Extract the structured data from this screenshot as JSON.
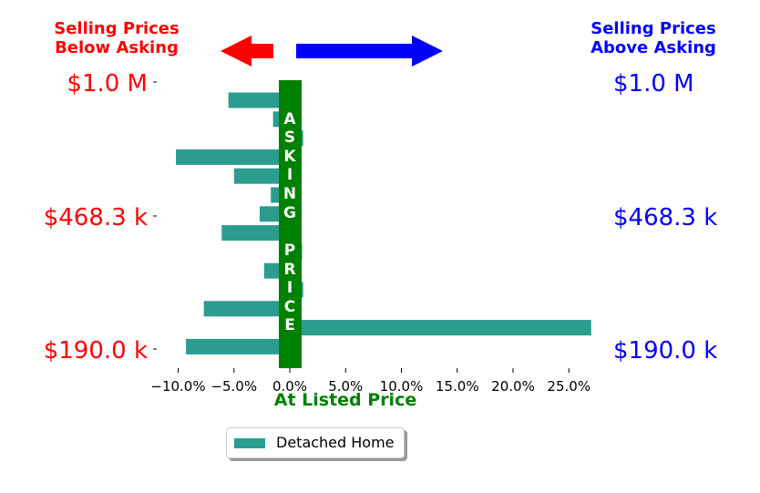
{
  "header": {
    "left_label": "Selling Prices\nBelow Asking",
    "right_label": "Selling Prices\nAbove Asking",
    "left_color": "#ff0000",
    "right_color": "#0000ff"
  },
  "colors": {
    "bar": "#2a9d8f",
    "center_bar": "#008000",
    "center_text": "#ffffff",
    "left_tick": "#ff0000",
    "right_tick": "#0000ff"
  },
  "chart_data": {
    "type": "bar",
    "orientation": "horizontal",
    "xlabel": "At Listed Price",
    "xlim": [
      -12.5,
      27.5
    ],
    "xticks": [
      -10,
      -5,
      0,
      5,
      10,
      15,
      20,
      25
    ],
    "xtick_labels": [
      "−10.0%",
      "−5.0%",
      "0.0%",
      "5.0%",
      "10.0%",
      "15.0%",
      "20.0%",
      "25.0%"
    ],
    "left_tick_labels": [
      "$1.0 M",
      "$468.3 k",
      "$190.0 k"
    ],
    "right_tick_labels": [
      "$1.0 M",
      "$468.3 k",
      "$190.0 k"
    ],
    "center_label": "ASKING PRICE",
    "legend": "bottom-center",
    "series": [
      {
        "name": "Detached Home",
        "values": [
          -5.5,
          -1.5,
          1.2,
          -10.2,
          -5.0,
          -1.7,
          -2.7,
          -6.1,
          1.1,
          -2.3,
          1.2,
          -7.7,
          27.0,
          -9.3
        ]
      }
    ]
  }
}
